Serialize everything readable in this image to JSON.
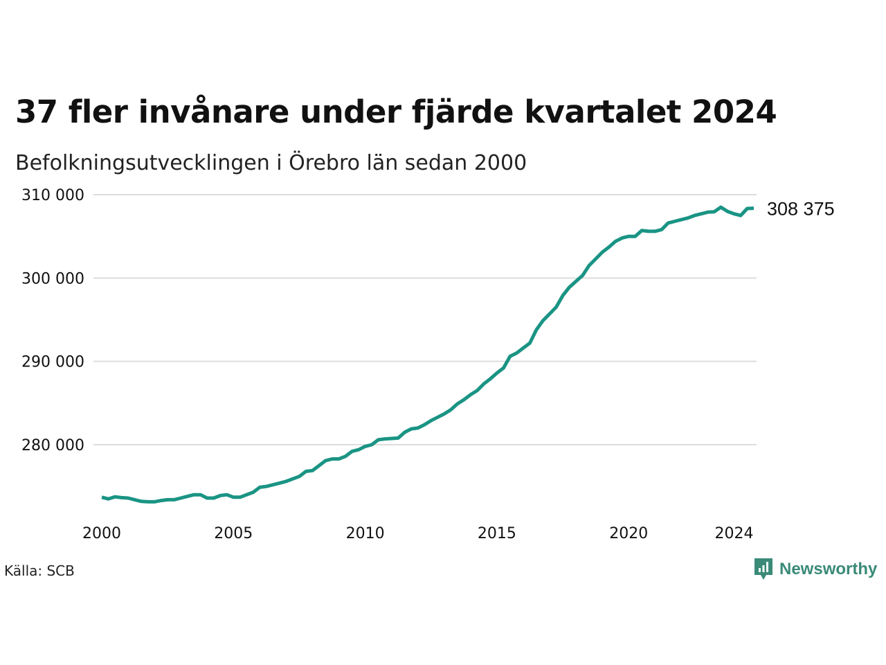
{
  "header": {
    "title": "37 fler invånare under fjärde kvartalet 2024",
    "subtitle": "Befolkningsutvecklingen i Örebro län sedan 2000"
  },
  "footer": {
    "source": "Källa: SCB",
    "brand": "Newsworthy",
    "brand_icon": "newsworthy-logo-icon"
  },
  "colors": {
    "line": "#1a9484",
    "grid": "#dddddd",
    "text": "#111111",
    "brand": "#3a8a78"
  },
  "chart_data": {
    "type": "line",
    "title": "37 fler invånare under fjärde kvartalet 2024",
    "subtitle": "Befolkningsutvecklingen i Örebro län sedan 2000",
    "xlabel": "",
    "ylabel": "",
    "x_ticks": [
      "2000",
      "2005",
      "2010",
      "2015",
      "2020",
      "2024"
    ],
    "x_tick_values": [
      2000,
      2005,
      2010,
      2015,
      2020,
      2024
    ],
    "y_ticks": [
      "280 000",
      "290 000",
      "300 000",
      "310 000"
    ],
    "y_tick_values": [
      280000,
      290000,
      300000,
      310000
    ],
    "ylim": [
      272000,
      310000
    ],
    "xlim": [
      2000,
      2024.75
    ],
    "grid": "horizontal",
    "end_label": "308 375",
    "series": [
      {
        "x": [
          2000,
          2000.25,
          2000.5,
          2000.75,
          2001,
          2001.25,
          2001.5,
          2001.75,
          2002,
          2002.25,
          2002.5,
          2002.75,
          2003,
          2003.25,
          2003.5,
          2003.75,
          2004,
          2004.25,
          2004.5,
          2004.75,
          2005,
          2005.25,
          2005.5,
          2005.75,
          2006,
          2006.25,
          2006.5,
          2006.75,
          2007,
          2007.25,
          2007.5,
          2007.75,
          2008,
          2008.25,
          2008.5,
          2008.75,
          2009,
          2009.25,
          2009.5,
          2009.75,
          2010,
          2010.25,
          2010.5,
          2010.75,
          2011,
          2011.25,
          2011.5,
          2011.75,
          2012,
          2012.25,
          2012.5,
          2012.75,
          2013,
          2013.25,
          2013.5,
          2013.75,
          2014,
          2014.25,
          2014.5,
          2014.75,
          2015,
          2015.25,
          2015.5,
          2015.75,
          2016,
          2016.25,
          2016.5,
          2016.75,
          2017,
          2017.25,
          2017.5,
          2017.75,
          2018,
          2018.25,
          2018.5,
          2018.75,
          2019,
          2019.25,
          2019.5,
          2019.75,
          2020,
          2020.25,
          2020.5,
          2020.75,
          2021,
          2021.25,
          2021.5,
          2021.75,
          2022,
          2022.25,
          2022.5,
          2022.75,
          2023,
          2023.25,
          2023.5,
          2023.75,
          2024,
          2024.25,
          2024.5,
          2024.75
        ],
        "values": [
          273700,
          273500,
          273750,
          273650,
          273600,
          273400,
          273200,
          273150,
          273150,
          273300,
          273400,
          273400,
          273600,
          273800,
          274000,
          274000,
          273600,
          273600,
          273900,
          274000,
          273700,
          273700,
          274000,
          274300,
          274900,
          275000,
          275200,
          275400,
          275600,
          275900,
          276200,
          276800,
          276900,
          277500,
          278100,
          278300,
          278300,
          278600,
          279200,
          279400,
          279800,
          280000,
          280600,
          280700,
          280750,
          280800,
          281500,
          281900,
          282000,
          282400,
          282900,
          283300,
          283700,
          284200,
          284900,
          285400,
          286000,
          286500,
          287300,
          287900,
          288600,
          289200,
          290600,
          291000,
          291600,
          292200,
          293800,
          294900,
          295700,
          296500,
          297900,
          298900,
          299600,
          300300,
          301500,
          302300,
          303100,
          303700,
          304400,
          304800,
          305000,
          305000,
          305700,
          305600,
          305600,
          305800,
          306600,
          306800,
          307000,
          307200,
          307500,
          307700,
          307900,
          307950,
          308500,
          308000,
          307700,
          307500,
          308338,
          308375
        ]
      }
    ]
  }
}
